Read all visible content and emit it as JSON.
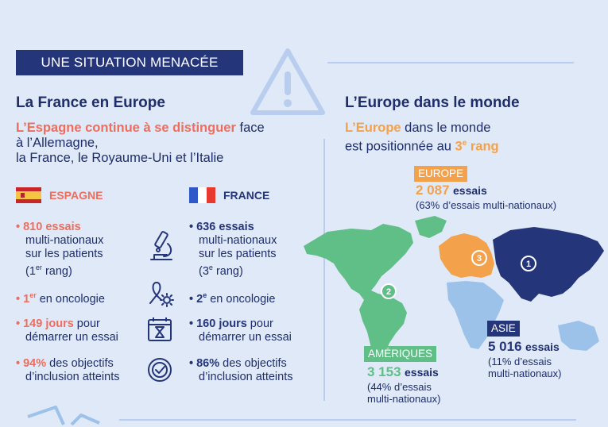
{
  "banner": "UNE SITUATION MENACÉE",
  "left": {
    "title": "La France en Europe",
    "lead_highlight": "L’Espagne continue à se distinguer",
    "lead_rest_1": "face à l’Allemagne,",
    "lead_rest_2": "la France, le Royaume-Uni et l’Italie",
    "spain": {
      "label": "ESPAGNE",
      "s1_bold": "810 essais",
      "s1_l2": "multi-nationaux",
      "s1_l3": "sur les patients",
      "s1_rank": "1",
      "s1_rank_sup": "er",
      "s1_rank_suffix": " rang)",
      "s2_bold": "1",
      "s2_sup": "er",
      "s2_rest": " en oncologie",
      "s3_bold": "149 jours",
      "s3_rest": " pour",
      "s3_l2": "démarrer un essai",
      "s4_bold": "94%",
      "s4_rest": " des objectifs",
      "s4_l2": "d’inclusion atteints"
    },
    "france": {
      "label": "FRANCE",
      "s1_bold": "636 essais",
      "s1_l2": "multi-nationaux",
      "s1_l3": "sur les patients",
      "s1_rank": "3",
      "s1_rank_sup": "e",
      "s1_rank_suffix": " rang)",
      "s2_bold": "2",
      "s2_sup": "e",
      "s2_rest": " en oncologie",
      "s3_bold": "160 jours",
      "s3_rest": " pour",
      "s3_l2": "démarrer un essai",
      "s4_bold": "86%",
      "s4_rest": " des objectifs",
      "s4_l2": "d’inclusion atteints"
    }
  },
  "right": {
    "title": "L’Europe dans le monde",
    "lead_highlight": "L’Europe",
    "lead_rest_1": " dans le monde",
    "lead_l2": "est positionnée au ",
    "lead_rank": "3",
    "lead_rank_sup": "e",
    "lead_rank_word": " rang",
    "europe": {
      "tag": "EUROPE",
      "num": "2 087",
      "unit": "essais",
      "note": "(63% d’essais multi-nationaux)",
      "rank": "3"
    },
    "asie": {
      "tag": "ASIE",
      "num": "5 016",
      "unit": "essais",
      "note1": "(11% d’essais",
      "note2": "multi-nationaux)",
      "rank": "1"
    },
    "ameriques": {
      "tag": "AMÉRIQUES",
      "num": "3 153",
      "unit": "essais",
      "note1": "(44% d’essais",
      "note2": "multi-nationaux)",
      "rank": "2"
    }
  },
  "colors": {
    "navy": "#25357a",
    "coral": "#ee6d5d",
    "orange": "#f3a14b",
    "green": "#5fbf86",
    "lightblue": "#9cc2ea"
  }
}
